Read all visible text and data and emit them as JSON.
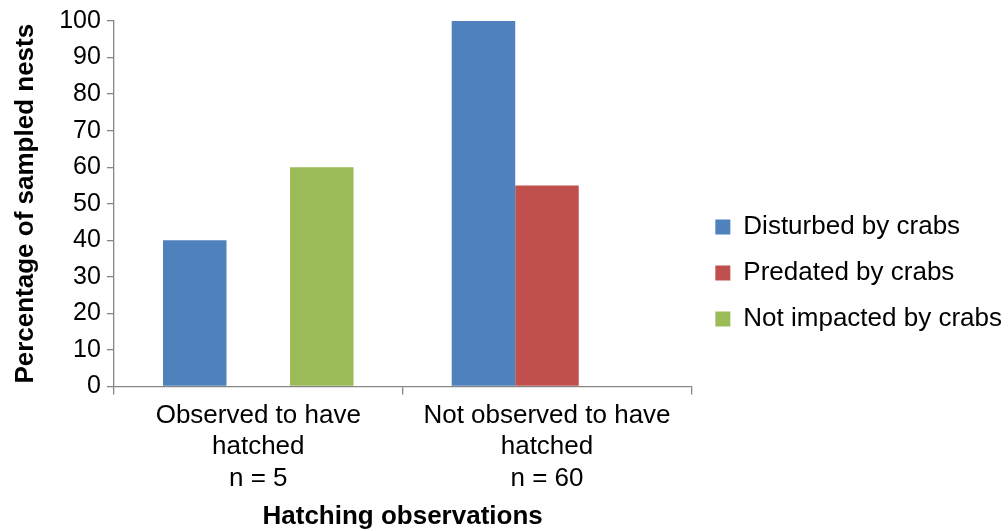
{
  "chart_data": {
    "type": "bar",
    "xlabel": "Hatching observations",
    "ylabel": "Percentage of sampled nests",
    "categories": [
      "Observed to have\nhatched\nn = 5",
      "Not observed to have\nhatched\nn = 60"
    ],
    "series": [
      {
        "name": "Disturbed by crabs",
        "color": "#4f81bd",
        "values": [
          40,
          100
        ]
      },
      {
        "name": "Predated by crabs",
        "color": "#c0504d",
        "values": [
          0,
          55
        ]
      },
      {
        "name": "Not impacted by crabs",
        "color": "#9bbb59",
        "values": [
          60,
          0
        ]
      }
    ],
    "ylim": [
      0,
      100
    ],
    "yticks": [
      0,
      10,
      20,
      30,
      40,
      50,
      60,
      70,
      80,
      90,
      100
    ],
    "grid": false,
    "legend": "right"
  }
}
